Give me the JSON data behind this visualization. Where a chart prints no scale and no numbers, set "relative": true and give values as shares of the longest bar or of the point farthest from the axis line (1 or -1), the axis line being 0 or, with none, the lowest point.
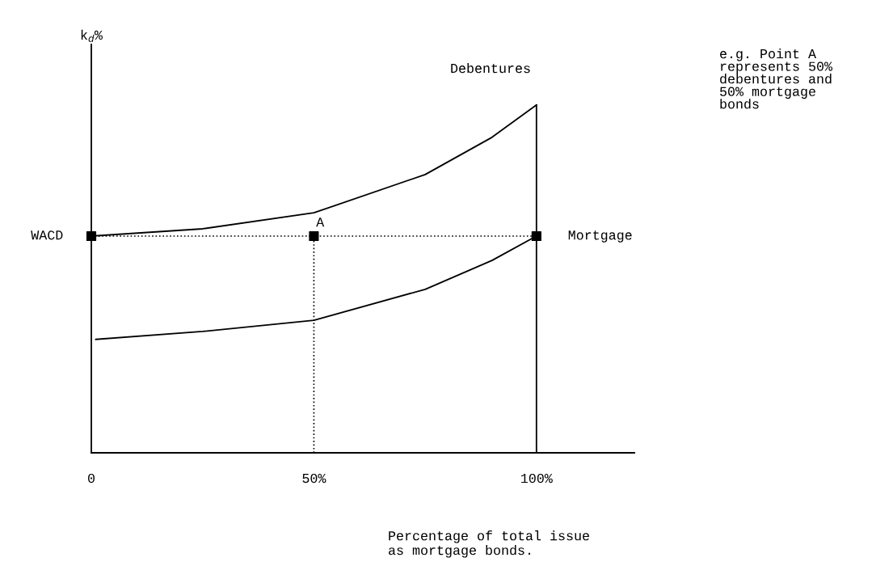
{
  "chart_data": {
    "type": "line",
    "relative": true,
    "xlabel": "Percentage of total issue\nas mortgage bonds.",
    "ylabel": "k$_{d}$%",
    "xlim": [
      0,
      122
    ],
    "xticks": [
      {
        "value": 0,
        "label": "0"
      },
      {
        "value": 50,
        "label": "50%"
      },
      {
        "value": 100,
        "label": "100%"
      }
    ],
    "tick_labels": "x",
    "grid": false,
    "legend": false,
    "series": [
      {
        "x": [
          0,
          25,
          50,
          75,
          90,
          100
        ],
        "values": [
          0.623,
          0.644,
          0.69,
          0.8,
          0.907,
          1.0
        ],
        "color": "#000000",
        "line_style": "solid",
        "marker": "none"
      },
      {
        "x": [
          1,
          25,
          50,
          75,
          90,
          100
        ],
        "values": [
          0.326,
          0.349,
          0.381,
          0.47,
          0.553,
          0.623
        ],
        "color": "#000000",
        "line_style": "solid",
        "marker": "none"
      },
      {
        "x": [
          100,
          100
        ],
        "values": [
          0,
          1.0
        ],
        "color": "#000000",
        "line_style": "solid",
        "marker": "none"
      },
      {
        "x": [
          0,
          100
        ],
        "values": [
          0.623,
          0.623
        ],
        "color": "#000000",
        "line_style": "dotted",
        "marker": "none"
      },
      {
        "x": [
          50,
          50
        ],
        "values": [
          0,
          0.623
        ],
        "color": "#000000",
        "line_style": "dotted",
        "marker": "none"
      },
      {
        "type": "scatter",
        "x": [
          0,
          50,
          100
        ],
        "values": [
          0.623,
          0.623,
          0.623
        ],
        "color": "#000000",
        "marker": "square"
      }
    ],
    "annotations": [
      {
        "text": "WACD",
        "x": 0,
        "y": 0.623
      },
      {
        "text": "A",
        "x": 50,
        "y": 0.623
      },
      {
        "text": "Mortgage",
        "x": 100,
        "y": 0.623
      },
      "Debentures",
      "e.g. Point A\nrepresents 50%\ndebentures and\n50% mortgage\nbonds"
    ]
  }
}
